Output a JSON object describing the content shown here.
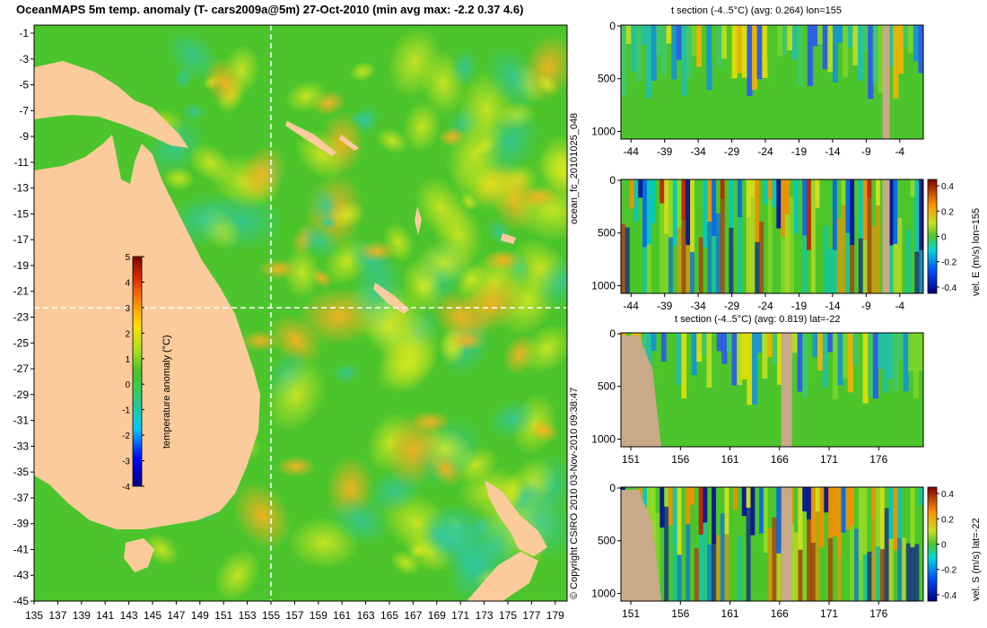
{
  "title": "OceanMAPS 5m temp. anomaly (T- cars2009a@5m) 27-Oct-2010 (min avg max: -2.2 0.37 4.6)",
  "map": {
    "lat_ticks": [
      "-1",
      "-3",
      "-5",
      "-7",
      "-9",
      "-11",
      "-13",
      "-15",
      "-17",
      "-19",
      "-21",
      "-23",
      "-25",
      "-27",
      "-29",
      "-31",
      "-33",
      "-35",
      "-37",
      "-39",
      "-41",
      "-43",
      "-45"
    ],
    "lon_ticks": [
      "135",
      "137",
      "139",
      "141",
      "143",
      "145",
      "147",
      "149",
      "151",
      "153",
      "155",
      "157",
      "159",
      "161",
      "163",
      "165",
      "167",
      "169",
      "171",
      "173",
      "175",
      "177",
      "179"
    ],
    "colorbar": {
      "label": "temperature anomaly (°C)",
      "ticks": [
        "5",
        "4",
        "3",
        "2",
        "1",
        "0",
        "-1",
        "-2",
        "-3",
        "-4"
      ]
    },
    "section_lon": 155,
    "section_lat": -22,
    "colors": {
      "land": "#fbcb9c",
      "ocean_base": "#4cc52c"
    }
  },
  "panels": [
    {
      "title": "t section (-4..5°C) (avg: 0.264) lon=155",
      "y_ticks": [
        "0",
        "500",
        "1000"
      ],
      "x_ticks": [
        "-44",
        "-39",
        "-34",
        "-29",
        "-24",
        "-19",
        "-14",
        "-9",
        "-4"
      ],
      "colorbar": null
    },
    {
      "title": "",
      "y_ticks": [
        "0",
        "500",
        "1000"
      ],
      "x_ticks": [
        "-44",
        "-39",
        "-34",
        "-29",
        "-24",
        "-19",
        "-14",
        "-9",
        "-4"
      ],
      "colorbar": {
        "label": "vel. E (m/s) lon=155",
        "ticks": [
          "0.4",
          "0.2",
          "0",
          "-0.2",
          "-0.4"
        ]
      }
    },
    {
      "title": "t section (-4..5°C) (avg: 0.819) lat=-22",
      "y_ticks": [
        "0",
        "500",
        "1000"
      ],
      "x_ticks": [
        "151",
        "156",
        "161",
        "166",
        "171",
        "176"
      ],
      "colorbar": null
    },
    {
      "title": "",
      "y_ticks": [
        "0",
        "500",
        "1000"
      ],
      "x_ticks": [
        "151",
        "156",
        "161",
        "166",
        "171",
        "176"
      ],
      "colorbar": {
        "label": "vel. S (m/s) lat=-22",
        "ticks": [
          "0.4",
          "0.2",
          "0",
          "-0.2",
          "-0.4"
        ]
      }
    }
  ],
  "side_texts": {
    "run_id": "ocean_fc_20101025_048",
    "copyright": "© Copyright CSIRO 2010   03-Nov-2010 09:38:47"
  }
}
